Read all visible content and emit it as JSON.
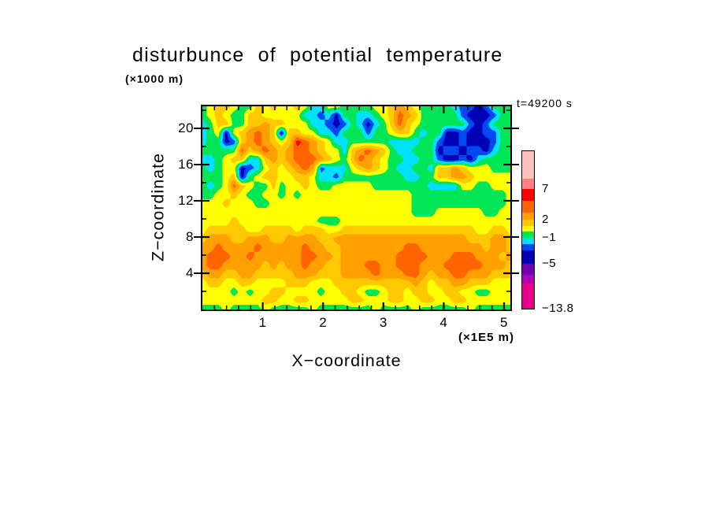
{
  "figure": {
    "background": "#ffffff",
    "frame_color": "#000000"
  },
  "title": "disturbunce of potential temperature",
  "labels": {
    "y_unit": "(×1000 m)",
    "x_unit": "(×1E5 m)",
    "time": "t=49200 s",
    "x_title": "X−coordinate",
    "z_title": "Z−coordinate"
  },
  "colorbar": {
    "labels": [
      "7",
      "2",
      "−1",
      "−5",
      "−13.8"
    ],
    "arrow_color": "#FFE9E9",
    "segments": [
      {
        "name": "pink",
        "color": "#FFC0C0",
        "h": 35
      },
      {
        "name": "salmon",
        "color": "#FF8080",
        "h": 13,
        "label": "7"
      },
      {
        "name": "red",
        "color": "#FF0000",
        "h": 15
      },
      {
        "name": "orange",
        "color": "#FF6400",
        "h": 15
      },
      {
        "name": "amber",
        "color": "#FFA000",
        "h": 9,
        "label": "2"
      },
      {
        "name": "gold",
        "color": "#FFC800",
        "h": 8
      },
      {
        "name": "yellow",
        "color": "#FFFF00",
        "h": 7
      },
      {
        "name": "green",
        "color": "#00E656",
        "h": 8,
        "label": "−1"
      },
      {
        "name": "cyan",
        "color": "#00E0FF",
        "h": 8
      },
      {
        "name": "blue",
        "color": "#0048F0",
        "h": 8
      },
      {
        "name": "navy",
        "color": "#0000B4",
        "h": 17,
        "label": "−5"
      },
      {
        "name": "purple",
        "color": "#7000B0",
        "h": 14
      },
      {
        "name": "violet",
        "color": "#B400B4",
        "h": 11
      },
      {
        "name": "magenta",
        "color": "#E8008C",
        "h": 32,
        "label": "−13.8"
      }
    ]
  },
  "chart_data": {
    "type": "heatmap",
    "subtype": "filled_contour",
    "title": "disturbunce of potential temperature",
    "time_annotation": "t=49200 s",
    "x_axis": {
      "label": "X-coordinate",
      "units": "×1E5 m",
      "ticks": [
        1,
        2,
        3,
        4,
        5
      ],
      "minor_tick_step": 0.2,
      "range": [
        0,
        5.1
      ]
    },
    "z_axis": {
      "label": "Z-coordinate",
      "units": "×1000 m",
      "ticks": [
        4,
        8,
        12,
        16,
        20
      ],
      "minor_tick_step": 2,
      "range": [
        0,
        22.4
      ]
    },
    "colorbar_labeled_levels": [
      7,
      2,
      -1,
      -5,
      -13.8
    ],
    "palette": [
      {
        "i": 0,
        "name": "magenta",
        "color": "#E8008C"
      },
      {
        "i": 1,
        "name": "violet",
        "color": "#B400B4"
      },
      {
        "i": 2,
        "name": "purple",
        "color": "#7000B0"
      },
      {
        "i": 3,
        "name": "navy",
        "color": "#0000B4"
      },
      {
        "i": 4,
        "name": "blue",
        "color": "#0048F0"
      },
      {
        "i": 5,
        "name": "cyan",
        "color": "#00E0FF"
      },
      {
        "i": 6,
        "name": "green",
        "color": "#00E656"
      },
      {
        "i": 7,
        "name": "yellow",
        "color": "#FFFF00"
      },
      {
        "i": 8,
        "name": "gold",
        "color": "#FFC800"
      },
      {
        "i": 9,
        "name": "amber",
        "color": "#FFA000"
      },
      {
        "i": 10,
        "name": "orange",
        "color": "#FF6400"
      },
      {
        "i": 11,
        "name": "red",
        "color": "#FF0000"
      },
      {
        "i": 12,
        "name": "salmon",
        "color": "#FF8080"
      },
      {
        "i": 13,
        "name": "pink",
        "color": "#FFC0C0"
      }
    ],
    "grid_note": "Estimated field on uniform grid; each char is a hex palette index. Row 0 = top of plot (z≈22.4×1000 m), last row = z=0; columns left→right span x = 0→5.1 ×1E5 m.",
    "grid": [
      "6788766878778755776666778987666654434666",
      "6787668877777554536655678a98666664333466",
      "5688668898877755434653568a87666666434666",
      "5673789a98388775546664667886566334334466",
      "5663489a9878ba98755666665555664334333466",
      "66666a89a989aa9877589a986556663443443566",
      "556788558989aaa98768a9876655664334356666",
      "6567734578789a94555789876556658898777666",
      "6667836788778875546666666655668899877777",
      "6567a87668677876677777666666655557766777",
      "6677876677676777777777777776666666666667",
      "7778777667777777777777777776666666666667",
      "7777777777777777777777777776667777776677",
      "7777877777777776667777777777777777777777",
      "7888887788887888778888888888888888877887",
      "8999889998899998899999999999999999888998",
      "99a9999a99999a998899999999aa999999998998",
      "9aaa99a999999aa9989999999aaaa999aaa99989",
      "9aa9999989899a9988999aa99aaa999aaaaa9998",
      "8998899888889998889999a999aa9899aa999888",
      "7887788777788877788888888889878899888777",
      "7777676778877776778876678878877887766777",
      "7777777788778877777887778877887788777777",
      "6667666676666676666666766667666666766666"
    ]
  }
}
